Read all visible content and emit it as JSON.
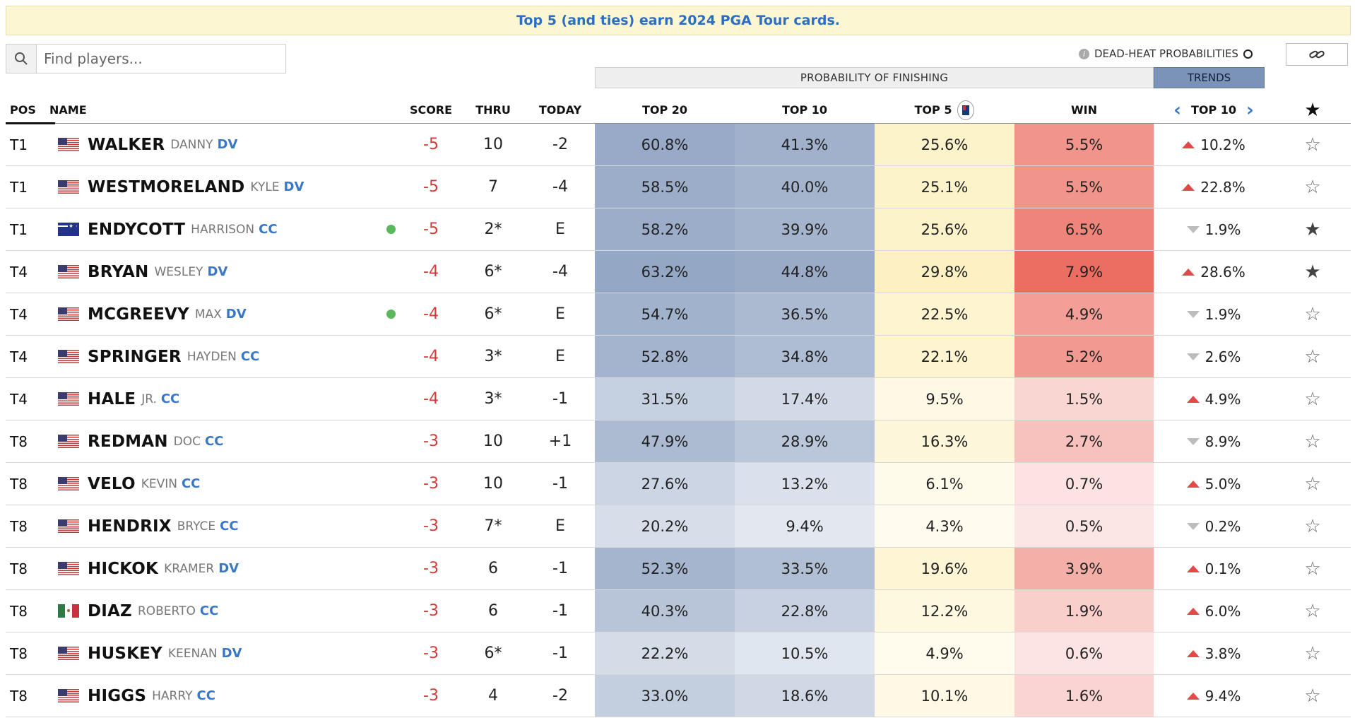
{
  "banner": {
    "text": "Top 5 (and ties) earn 2024 PGA Tour cards."
  },
  "search": {
    "placeholder": "Find players..."
  },
  "controls": {
    "dead_heat_label": "DEAD-HEAT PROBABILITIES",
    "info_glyph": "i"
  },
  "groups": {
    "probability_label": "PROBABILITY OF FINISHING",
    "trends_label": "TRENDS"
  },
  "columns": {
    "pos": "POS",
    "name": "NAME",
    "score": "SCORE",
    "thru": "THRU",
    "today": "TODAY",
    "top20": "TOP 20",
    "top10": "TOP 10",
    "top5": "TOP 5",
    "win": "WIN",
    "trends": "TOP 10",
    "trends_prev": "‹",
    "trends_next": "›",
    "favorite": "★"
  },
  "icons": {
    "search": "search-icon",
    "link": "link-icon",
    "info": "info-icon",
    "pga_tour": "pga-tour-logo-icon",
    "star_filled": "★",
    "star_empty": "☆"
  },
  "colors": {
    "banner_bg": "#fdf6d3",
    "banner_text": "#2a6fc4",
    "score_under_par": "#d43a3a",
    "trend_up": "#e24a4a",
    "trend_down": "#bdbdbd",
    "active_dot": "#5cb85c",
    "trends_header_bg": "#7c93b8"
  },
  "players": [
    {
      "pos": "T1",
      "flag": "us",
      "last": "WALKER",
      "first": "DANNY",
      "tag": "DV",
      "active": false,
      "score": "-5",
      "thru": "10",
      "today": "-2",
      "top20": "60.8%",
      "top10": "41.3%",
      "top5": "25.6%",
      "win": "5.5%",
      "trend_dir": "up",
      "trend": "10.2%",
      "favorite": false
    },
    {
      "pos": "T1",
      "flag": "us",
      "last": "WESTMORELAND",
      "first": "KYLE",
      "tag": "DV",
      "active": false,
      "score": "-5",
      "thru": "7",
      "today": "-4",
      "top20": "58.5%",
      "top10": "40.0%",
      "top5": "25.1%",
      "win": "5.5%",
      "trend_dir": "up",
      "trend": "22.8%",
      "favorite": false
    },
    {
      "pos": "T1",
      "flag": "au",
      "last": "ENDYCOTT",
      "first": "HARRISON",
      "tag": "CC",
      "active": true,
      "score": "-5",
      "thru": "2*",
      "today": "E",
      "top20": "58.2%",
      "top10": "39.9%",
      "top5": "25.6%",
      "win": "6.5%",
      "trend_dir": "down",
      "trend": "1.9%",
      "favorite": true
    },
    {
      "pos": "T4",
      "flag": "us",
      "last": "BRYAN",
      "first": "WESLEY",
      "tag": "DV",
      "active": false,
      "score": "-4",
      "thru": "6*",
      "today": "-4",
      "top20": "63.2%",
      "top10": "44.8%",
      "top5": "29.8%",
      "win": "7.9%",
      "trend_dir": "up",
      "trend": "28.6%",
      "favorite": true
    },
    {
      "pos": "T4",
      "flag": "us",
      "last": "MCGREEVY",
      "first": "MAX",
      "tag": "DV",
      "active": true,
      "score": "-4",
      "thru": "6*",
      "today": "E",
      "top20": "54.7%",
      "top10": "36.5%",
      "top5": "22.5%",
      "win": "4.9%",
      "trend_dir": "down",
      "trend": "1.9%",
      "favorite": false
    },
    {
      "pos": "T4",
      "flag": "us",
      "last": "SPRINGER",
      "first": "HAYDEN",
      "tag": "CC",
      "active": false,
      "score": "-4",
      "thru": "3*",
      "today": "E",
      "top20": "52.8%",
      "top10": "34.8%",
      "top5": "22.1%",
      "win": "5.2%",
      "trend_dir": "down",
      "trend": "2.6%",
      "favorite": false
    },
    {
      "pos": "T4",
      "flag": "us",
      "last": "HALE",
      "first": "JR.",
      "tag": "CC",
      "active": false,
      "score": "-4",
      "thru": "3*",
      "today": "-1",
      "top20": "31.5%",
      "top10": "17.4%",
      "top5": "9.5%",
      "win": "1.5%",
      "trend_dir": "up",
      "trend": "4.9%",
      "favorite": false
    },
    {
      "pos": "T8",
      "flag": "us",
      "last": "REDMAN",
      "first": "DOC",
      "tag": "CC",
      "active": false,
      "score": "-3",
      "thru": "10",
      "today": "+1",
      "top20": "47.9%",
      "top10": "28.9%",
      "top5": "16.3%",
      "win": "2.7%",
      "trend_dir": "down",
      "trend": "8.9%",
      "favorite": false
    },
    {
      "pos": "T8",
      "flag": "us",
      "last": "VELO",
      "first": "KEVIN",
      "tag": "CC",
      "active": false,
      "score": "-3",
      "thru": "10",
      "today": "-1",
      "top20": "27.6%",
      "top10": "13.2%",
      "top5": "6.1%",
      "win": "0.7%",
      "trend_dir": "up",
      "trend": "5.0%",
      "favorite": false
    },
    {
      "pos": "T8",
      "flag": "us",
      "last": "HENDRIX",
      "first": "BRYCE",
      "tag": "CC",
      "active": false,
      "score": "-3",
      "thru": "7*",
      "today": "E",
      "top20": "20.2%",
      "top10": "9.4%",
      "top5": "4.3%",
      "win": "0.5%",
      "trend_dir": "down",
      "trend": "0.2%",
      "favorite": false
    },
    {
      "pos": "T8",
      "flag": "us",
      "last": "HICKOK",
      "first": "KRAMER",
      "tag": "DV",
      "active": false,
      "score": "-3",
      "thru": "6",
      "today": "-1",
      "top20": "52.3%",
      "top10": "33.5%",
      "top5": "19.6%",
      "win": "3.9%",
      "trend_dir": "up",
      "trend": "0.1%",
      "favorite": false
    },
    {
      "pos": "T8",
      "flag": "mx",
      "last": "DIAZ",
      "first": "ROBERTO",
      "tag": "CC",
      "active": false,
      "score": "-3",
      "thru": "6",
      "today": "-1",
      "top20": "40.3%",
      "top10": "22.8%",
      "top5": "12.2%",
      "win": "1.9%",
      "trend_dir": "up",
      "trend": "6.0%",
      "favorite": false
    },
    {
      "pos": "T8",
      "flag": "us",
      "last": "HUSKEY",
      "first": "KEENAN",
      "tag": "DV",
      "active": false,
      "score": "-3",
      "thru": "6*",
      "today": "-1",
      "top20": "22.2%",
      "top10": "10.5%",
      "top5": "4.9%",
      "win": "0.6%",
      "trend_dir": "up",
      "trend": "3.8%",
      "favorite": false
    },
    {
      "pos": "T8",
      "flag": "us",
      "last": "HIGGS",
      "first": "HARRY",
      "tag": "CC",
      "active": false,
      "score": "-3",
      "thru": "4",
      "today": "-2",
      "top20": "33.0%",
      "top10": "18.6%",
      "top5": "10.1%",
      "win": "1.6%",
      "trend_dir": "up",
      "trend": "9.4%",
      "favorite": false
    }
  ]
}
